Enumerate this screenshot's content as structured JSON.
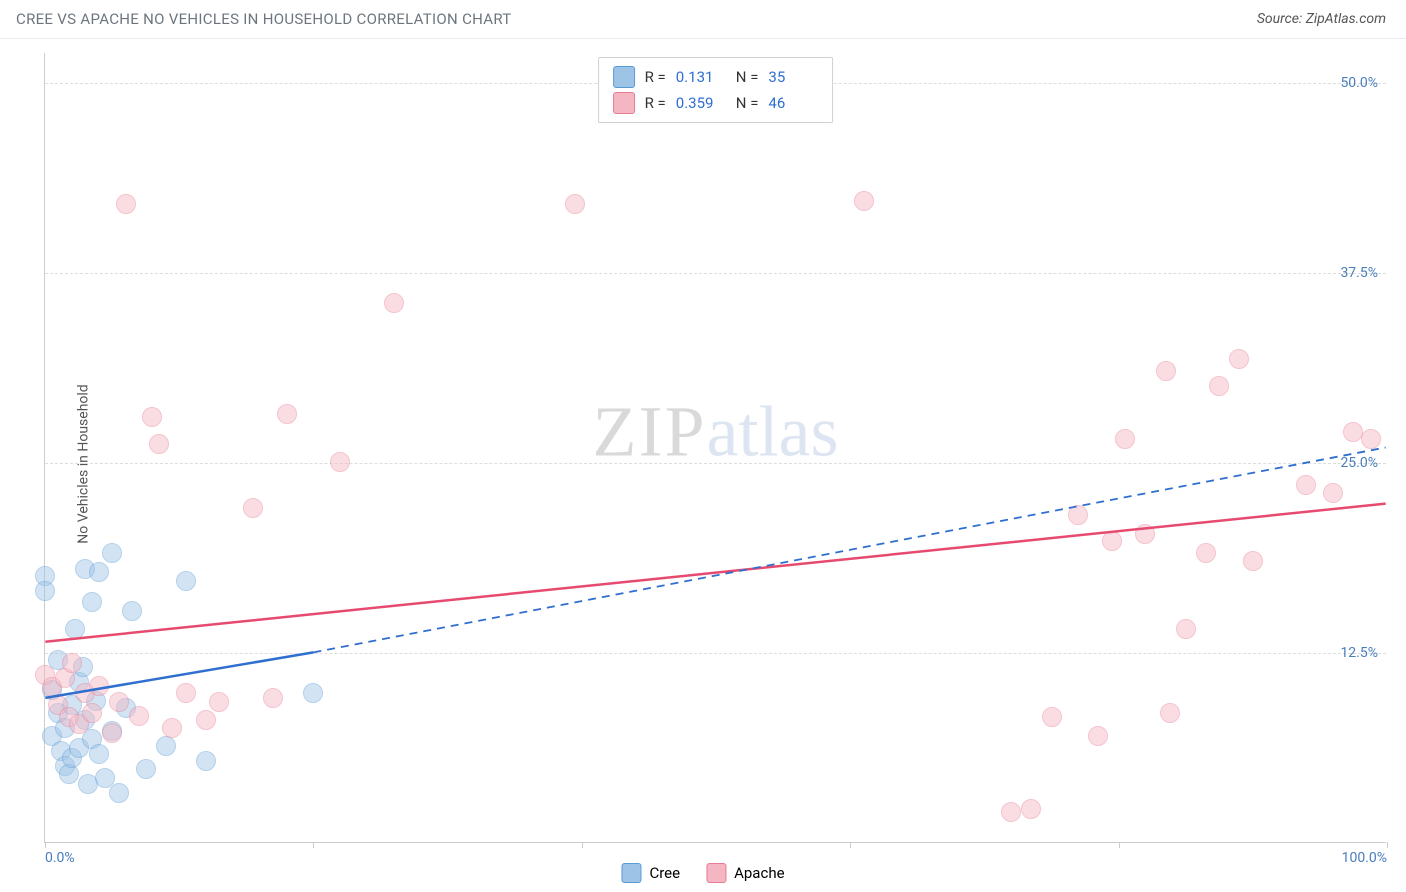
{
  "header": {
    "title": "CREE VS APACHE NO VEHICLES IN HOUSEHOLD CORRELATION CHART",
    "source": "Source: ZipAtlas.com"
  },
  "chart": {
    "type": "scatter",
    "ylabel": "No Vehicles in Household",
    "xlim": [
      0,
      100
    ],
    "ylim": [
      0,
      52
    ],
    "ygrid": [
      12.5,
      25.0,
      37.5,
      50.0
    ],
    "ytick_labels": [
      "12.5%",
      "25.0%",
      "37.5%",
      "50.0%"
    ],
    "xticks": [
      0,
      20,
      40,
      60,
      80,
      100
    ],
    "xtick_labels_shown": {
      "0": "0.0%",
      "100": "100.0%"
    },
    "background_color": "#ffffff",
    "grid_color": "#dddddd",
    "axis_color": "#cccccc",
    "ytick_label_color": "#4a7ebb",
    "marker_radius": 10,
    "marker_opacity": 0.45,
    "series": [
      {
        "name": "Cree",
        "fill": "#9dc3e6",
        "stroke": "#5b9bd5",
        "trend_color": "#2f6fd0",
        "trend_dash_color": "#2f6fd0",
        "R": "0.131",
        "N": "35",
        "trend_solid": {
          "x1": 0,
          "y1": 9.5,
          "x2": 20,
          "y2": 12.5
        },
        "trend_dashed": {
          "x1": 20,
          "y1": 12.5,
          "x2": 100,
          "y2": 26.0
        },
        "points": [
          [
            0.0,
            17.5
          ],
          [
            0.0,
            16.5
          ],
          [
            0.5,
            7.0
          ],
          [
            0.5,
            10.0
          ],
          [
            1.0,
            8.5
          ],
          [
            1.0,
            12.0
          ],
          [
            1.2,
            6.0
          ],
          [
            1.5,
            5.0
          ],
          [
            1.5,
            7.5
          ],
          [
            1.8,
            4.5
          ],
          [
            2.0,
            9.0
          ],
          [
            2.0,
            5.5
          ],
          [
            2.2,
            14.0
          ],
          [
            2.5,
            6.2
          ],
          [
            2.5,
            10.5
          ],
          [
            2.8,
            11.5
          ],
          [
            3.0,
            18.0
          ],
          [
            3.0,
            8.0
          ],
          [
            3.2,
            3.8
          ],
          [
            3.5,
            15.8
          ],
          [
            3.5,
            6.8
          ],
          [
            3.8,
            9.3
          ],
          [
            4.0,
            17.8
          ],
          [
            4.0,
            5.8
          ],
          [
            4.5,
            4.2
          ],
          [
            5.0,
            19.0
          ],
          [
            5.0,
            7.3
          ],
          [
            5.5,
            3.2
          ],
          [
            6.0,
            8.8
          ],
          [
            6.5,
            15.2
          ],
          [
            7.5,
            4.8
          ],
          [
            9.0,
            6.3
          ],
          [
            10.5,
            17.2
          ],
          [
            12.0,
            5.3
          ],
          [
            20.0,
            9.8
          ]
        ]
      },
      {
        "name": "Apache",
        "fill": "#f4b6c2",
        "stroke": "#e87b94",
        "trend_color": "#e74a6f",
        "R": "0.359",
        "N": "46",
        "trend_solid": {
          "x1": 0,
          "y1": 13.2,
          "x2": 100,
          "y2": 22.3
        },
        "points": [
          [
            0.0,
            11.0
          ],
          [
            0.5,
            10.2
          ],
          [
            1.0,
            9.0
          ],
          [
            1.5,
            10.8
          ],
          [
            1.8,
            8.2
          ],
          [
            2.0,
            11.8
          ],
          [
            2.5,
            7.8
          ],
          [
            3.0,
            9.8
          ],
          [
            3.5,
            8.5
          ],
          [
            4.0,
            10.3
          ],
          [
            5.0,
            7.2
          ],
          [
            5.5,
            9.2
          ],
          [
            6.0,
            42.0
          ],
          [
            7.0,
            8.3
          ],
          [
            8.0,
            28.0
          ],
          [
            8.5,
            26.2
          ],
          [
            9.5,
            7.5
          ],
          [
            10.5,
            9.8
          ],
          [
            12.0,
            8.0
          ],
          [
            13.0,
            9.2
          ],
          [
            15.5,
            22.0
          ],
          [
            17.0,
            9.5
          ],
          [
            18.0,
            28.2
          ],
          [
            22.0,
            25.0
          ],
          [
            26.0,
            35.5
          ],
          [
            39.5,
            42.0
          ],
          [
            61.0,
            42.2
          ],
          [
            72.0,
            2.0
          ],
          [
            73.5,
            2.2
          ],
          [
            75.0,
            8.2
          ],
          [
            77.0,
            21.5
          ],
          [
            78.5,
            7.0
          ],
          [
            79.5,
            19.8
          ],
          [
            80.5,
            26.5
          ],
          [
            82.0,
            20.3
          ],
          [
            83.5,
            31.0
          ],
          [
            83.8,
            8.5
          ],
          [
            85.0,
            14.0
          ],
          [
            86.5,
            19.0
          ],
          [
            87.5,
            30.0
          ],
          [
            89.0,
            31.8
          ],
          [
            90.0,
            18.5
          ],
          [
            94.0,
            23.5
          ],
          [
            96.0,
            23.0
          ],
          [
            97.5,
            27.0
          ],
          [
            98.8,
            26.5
          ]
        ]
      }
    ],
    "legend_bottom": [
      "Cree",
      "Apache"
    ]
  },
  "watermark": {
    "a": "ZIP",
    "b": "atlas"
  }
}
